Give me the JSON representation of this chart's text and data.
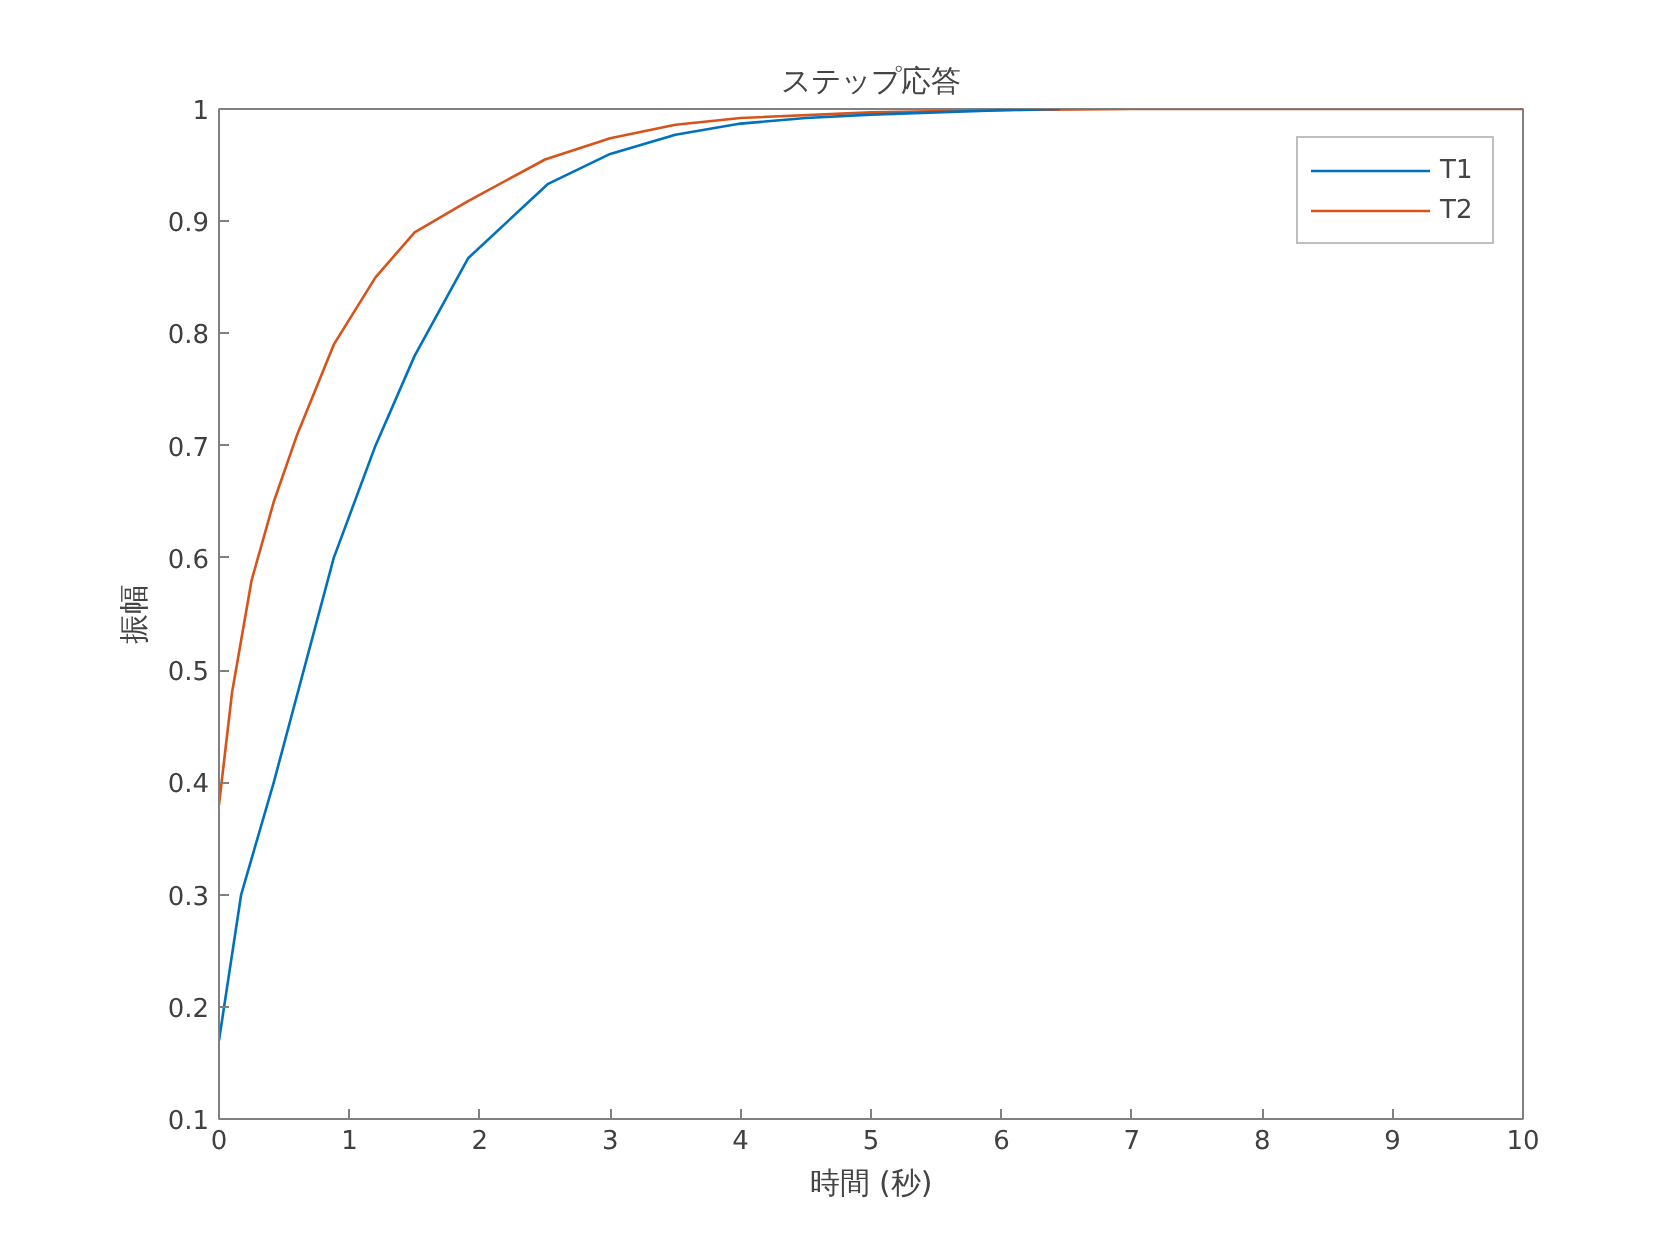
{
  "chart_data": {
    "type": "line",
    "title": "ステップ応答",
    "xlabel": "時間 (秒)",
    "ylabel": "振幅",
    "xlim": [
      0,
      10
    ],
    "xticks": [
      0,
      1,
      2,
      3,
      4,
      5,
      6,
      7,
      8,
      9,
      10
    ],
    "ylim": [
      0.1,
      1
    ],
    "yticks": [
      0.1,
      0.2,
      0.3,
      0.4,
      0.5,
      0.6,
      0.7,
      0.8,
      0.9,
      1
    ],
    "grid": false,
    "legend": "top right",
    "marker": "none",
    "line_style": "solid",
    "series": [
      {
        "name": "T1",
        "color": "#0072bd",
        "x": [
          0,
          0.17,
          0.42,
          0.88,
          1.2,
          1.5,
          1.91,
          2.52,
          3,
          3.5,
          4,
          4.5,
          5,
          5.5,
          6,
          6.45
        ],
        "values": [
          0.17,
          0.3,
          0.4,
          0.6,
          0.7,
          0.78,
          0.867,
          0.933,
          0.96,
          0.977,
          0.987,
          0.992,
          0.995,
          0.997,
          0.999,
          1.0
        ]
      },
      {
        "name": "T2",
        "color": "#d95319",
        "x": [
          0,
          0.1,
          0.25,
          0.42,
          0.6,
          0.88,
          1.2,
          1.5,
          1.91,
          2.5,
          3,
          3.5,
          4,
          5,
          6,
          7,
          8,
          9,
          10
        ],
        "values": [
          0.38,
          0.48,
          0.58,
          0.65,
          0.71,
          0.79,
          0.85,
          0.89,
          0.918,
          0.955,
          0.974,
          0.986,
          0.992,
          0.997,
          0.999,
          1,
          1,
          1,
          1
        ]
      }
    ]
  }
}
